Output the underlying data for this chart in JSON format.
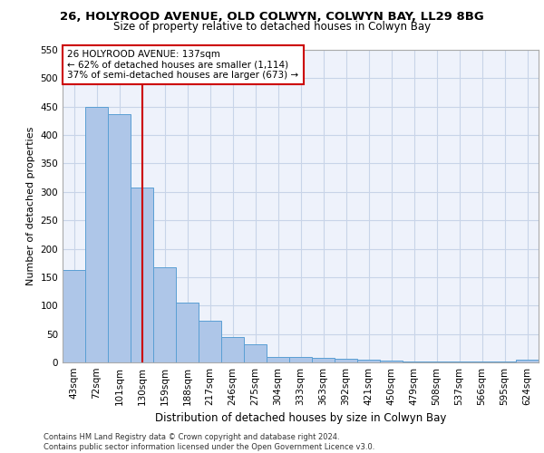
{
  "title_line1": "26, HOLYROOD AVENUE, OLD COLWYN, COLWYN BAY, LL29 8BG",
  "title_line2": "Size of property relative to detached houses in Colwyn Bay",
  "xlabel": "Distribution of detached houses by size in Colwyn Bay",
  "ylabel": "Number of detached properties",
  "categories": [
    "43sqm",
    "72sqm",
    "101sqm",
    "130sqm",
    "159sqm",
    "188sqm",
    "217sqm",
    "246sqm",
    "275sqm",
    "304sqm",
    "333sqm",
    "363sqm",
    "392sqm",
    "421sqm",
    "450sqm",
    "479sqm",
    "508sqm",
    "537sqm",
    "566sqm",
    "595sqm",
    "624sqm"
  ],
  "values": [
    163,
    450,
    437,
    307,
    168,
    106,
    74,
    44,
    32,
    10,
    10,
    8,
    7,
    5,
    3,
    2,
    2,
    2,
    1,
    1,
    5
  ],
  "bar_color": "#aec6e8",
  "bar_edge_color": "#5a9fd4",
  "vline_color": "#cc0000",
  "vline_pos": 3.5,
  "ylim": [
    0,
    550
  ],
  "yticks": [
    0,
    50,
    100,
    150,
    200,
    250,
    300,
    350,
    400,
    450,
    500,
    550
  ],
  "annotation_line1": "26 HOLYROOD AVENUE: 137sqm",
  "annotation_line2": "← 62% of detached houses are smaller (1,114)",
  "annotation_line3": "37% of semi-detached houses are larger (673) →",
  "annotation_box_color": "#ffffff",
  "annotation_box_edge": "#cc0000",
  "footer_text": "Contains HM Land Registry data © Crown copyright and database right 2024.\nContains public sector information licensed under the Open Government Licence v3.0.",
  "bg_color": "#eef2fb",
  "grid_color": "#c8d4e8",
  "title1_fontsize": 9.5,
  "title2_fontsize": 8.5,
  "xlabel_fontsize": 8.5,
  "ylabel_fontsize": 8,
  "tick_fontsize": 7.5,
  "annot_fontsize": 7.5,
  "footer_fontsize": 6.0
}
